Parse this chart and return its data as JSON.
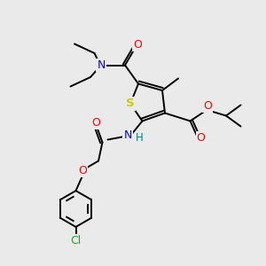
{
  "bg_color": "#eaeaea",
  "bond_color": "#000000",
  "S_color": "#cccc00",
  "N_color": "#0000ff",
  "O_color": "#ff0000",
  "Cl_color": "#00bb00",
  "H_color": "#008080",
  "lw": 1.4,
  "figsize": [
    3.0,
    3.0
  ],
  "dpi": 100,
  "xlim": [
    0,
    10
  ],
  "ylim": [
    0,
    10
  ]
}
